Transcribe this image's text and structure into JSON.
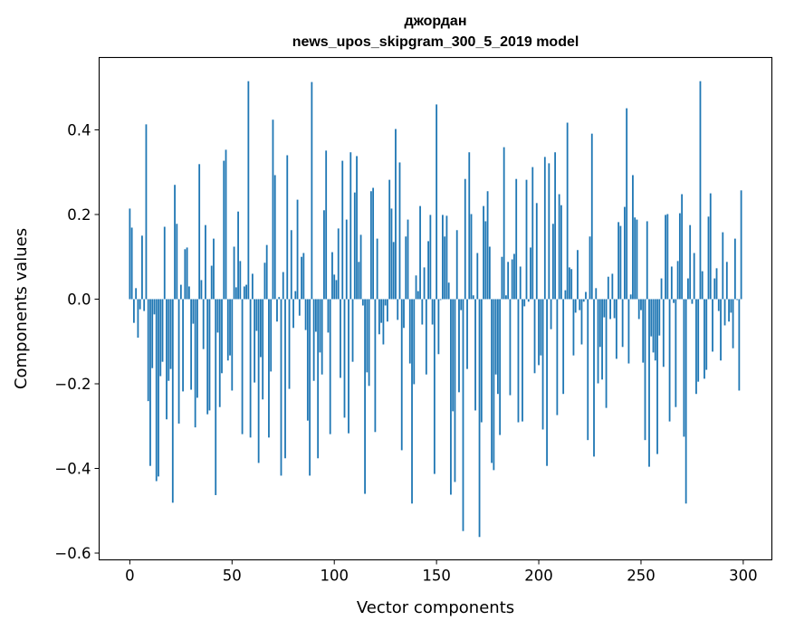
{
  "chart_data": {
    "type": "bar",
    "title": "джордан",
    "subtitle": "news_upos_skipgram_300_5_2019 model",
    "xlabel": "Vector components",
    "ylabel": "Components values",
    "xlim": [
      -15,
      314
    ],
    "ylim": [
      -0.616,
      0.571
    ],
    "xticks": [
      0,
      50,
      100,
      150,
      200,
      250,
      300
    ],
    "xtick_labels": [
      "0",
      "50",
      "100",
      "150",
      "200",
      "250",
      "300"
    ],
    "yticks": [
      -0.6,
      -0.4,
      -0.2,
      0.0,
      0.2,
      0.4
    ],
    "ytick_labels": [
      "−0.6",
      "−0.4",
      "−0.2",
      "0.0",
      "0.2",
      "0.4"
    ],
    "grid": false,
    "color": "#1f77b4",
    "values": [
      0.214,
      0.169,
      -0.056,
      0.026,
      -0.091,
      -0.024,
      0.15,
      -0.028,
      0.413,
      -0.241,
      -0.394,
      -0.163,
      -0.036,
      -0.43,
      -0.419,
      -0.182,
      -0.148,
      0.171,
      -0.284,
      -0.193,
      -0.165,
      -0.481,
      0.27,
      0.178,
      -0.294,
      0.034,
      -0.218,
      0.118,
      0.122,
      0.03,
      -0.214,
      -0.058,
      -0.303,
      -0.233,
      0.319,
      0.045,
      -0.118,
      0.175,
      -0.272,
      -0.263,
      0.079,
      0.143,
      -0.463,
      -0.079,
      -0.255,
      -0.175,
      0.327,
      0.353,
      -0.145,
      -0.133,
      -0.216,
      0.124,
      0.028,
      0.207,
      0.09,
      -0.319,
      0.03,
      0.034,
      0.515,
      -0.327,
      0.06,
      -0.197,
      -0.075,
      -0.387,
      -0.137,
      -0.237,
      0.086,
      0.128,
      -0.327,
      -0.171,
      0.424,
      0.293,
      -0.053,
      0.005,
      -0.417,
      0.064,
      -0.376,
      0.34,
      -0.212,
      0.163,
      -0.068,
      0.019,
      0.235,
      -0.039,
      0.1,
      0.109,
      -0.073,
      -0.287,
      -0.417,
      0.513,
      -0.193,
      -0.077,
      -0.376,
      -0.126,
      -0.178,
      0.21,
      0.351,
      -0.079,
      -0.319,
      0.111,
      0.058,
      0.045,
      0.167,
      -0.186,
      0.327,
      -0.28,
      0.188,
      -0.317,
      0.347,
      -0.148,
      0.252,
      0.338,
      0.088,
      0.152,
      -0.015,
      -0.46,
      -0.173,
      -0.205,
      0.255,
      0.263,
      -0.314,
      0.143,
      -0.083,
      -0.056,
      -0.107,
      -0.015,
      -0.053,
      0.282,
      0.214,
      0.135,
      0.402,
      -0.049,
      0.323,
      -0.357,
      -0.068,
      0.148,
      0.188,
      -0.152,
      -0.483,
      -0.201,
      0.056,
      0.019,
      0.22,
      -0.06,
      0.075,
      -0.178,
      0.137,
      0.199,
      -0.06,
      -0.413,
      0.46,
      -0.13,
      -0.002,
      0.199,
      0.148,
      0.197,
      0.039,
      -0.462,
      -0.265,
      -0.432,
      0.163,
      -0.22,
      -0.026,
      -0.548,
      0.284,
      -0.165,
      0.347,
      0.201,
      0.009,
      -0.263,
      0.109,
      -0.562,
      -0.291,
      0.22,
      0.184,
      0.255,
      0.124,
      -0.387,
      -0.404,
      -0.178,
      -0.224,
      -0.321,
      0.1,
      0.359,
      0.009,
      0.088,
      -0.227,
      0.094,
      0.107,
      0.284,
      -0.291,
      0.077,
      -0.289,
      -0.017,
      0.282,
      -0.006,
      0.122,
      0.312,
      -0.175,
      0.227,
      -0.156,
      -0.133,
      -0.308,
      0.336,
      -0.394,
      0.321,
      -0.071,
      0.178,
      0.347,
      -0.274,
      0.248,
      0.222,
      -0.224,
      0.021,
      0.417,
      0.075,
      0.071,
      -0.133,
      -0.032,
      0.116,
      -0.026,
      -0.107,
      -0.006,
      0.017,
      -0.333,
      0.148,
      0.391,
      -0.372,
      0.026,
      -0.199,
      -0.113,
      -0.19,
      -0.043,
      -0.257,
      0.053,
      -0.047,
      0.06,
      -0.045,
      -0.141,
      0.182,
      0.173,
      -0.113,
      0.218,
      0.451,
      -0.152,
      0.011,
      0.293,
      0.193,
      0.188,
      -0.047,
      -0.026,
      -0.15,
      -0.333,
      0.184,
      -0.396,
      -0.088,
      -0.126,
      -0.145,
      -0.366,
      -0.086,
      0.049,
      -0.16,
      0.199,
      0.201,
      -0.289,
      0.077,
      -0.009,
      -0.255,
      0.09,
      0.203,
      0.248,
      -0.325,
      -0.483,
      0.049,
      0.175,
      -0.011,
      0.109,
      -0.224,
      -0.195,
      0.515,
      0.066,
      -0.188,
      -0.167,
      0.195,
      0.25,
      -0.124,
      0.049,
      0.073,
      -0.028,
      -0.145,
      0.158,
      -0.062,
      0.088,
      -0.053,
      -0.032,
      -0.116,
      0.143,
      -0.002,
      -0.216,
      0.257
    ]
  }
}
